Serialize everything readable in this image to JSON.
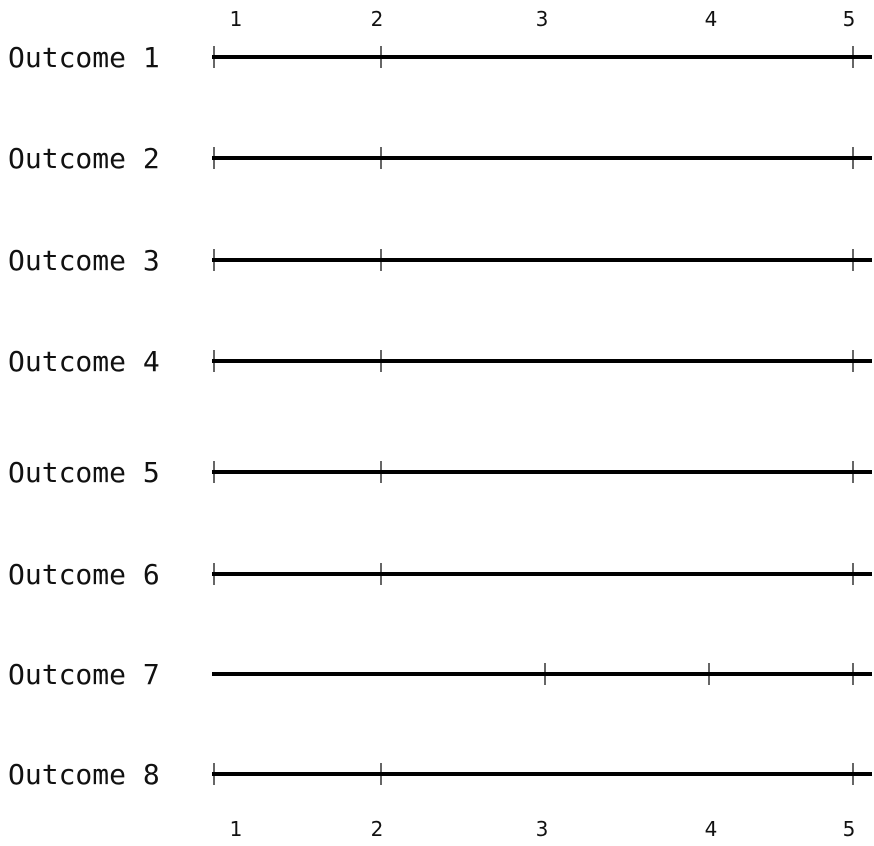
{
  "chart_data": {
    "type": "table",
    "x_ticks": [
      1,
      2,
      3,
      4,
      5
    ],
    "xlim": [
      1,
      5
    ],
    "x_ticks_shown": [
      "top",
      "bottom"
    ],
    "grid": false,
    "line_color": "#000000",
    "rows": [
      {
        "label": "Outcome 1",
        "marks": [
          1,
          2,
          5
        ]
      },
      {
        "label": "Outcome 2",
        "marks": [
          1,
          2,
          5
        ]
      },
      {
        "label": "Outcome 3",
        "marks": [
          1,
          2,
          5
        ]
      },
      {
        "label": "Outcome 4",
        "marks": [
          1,
          2,
          5
        ]
      },
      {
        "label": "Outcome 5",
        "marks": [
          1,
          2,
          5
        ]
      },
      {
        "label": "Outcome 6",
        "marks": [
          1,
          2,
          5
        ]
      },
      {
        "label": "Outcome 7",
        "marks": [
          3,
          4,
          5
        ]
      },
      {
        "label": "Outcome 8",
        "marks": [
          1,
          2,
          5
        ]
      }
    ]
  }
}
